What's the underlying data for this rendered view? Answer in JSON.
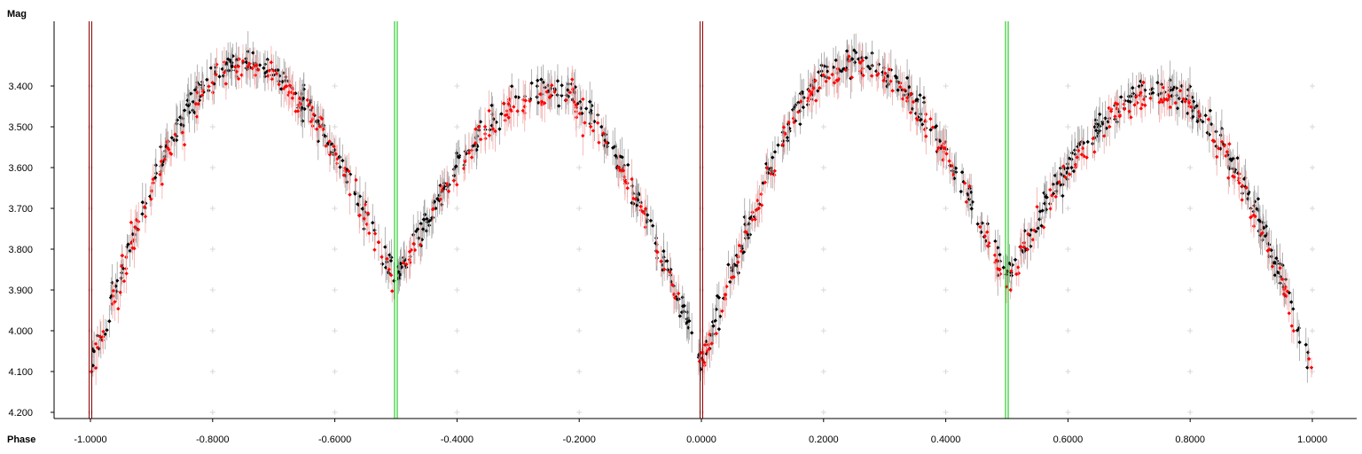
{
  "chart_data": {
    "type": "scatter",
    "title": "",
    "xlabel": "Phase",
    "ylabel": "Mag",
    "xlim": [
      -1.02,
      1.06
    ],
    "ylim": [
      4.22,
      3.25
    ],
    "y_inverted": true,
    "grid": "cross markers",
    "x_ticks": [
      -1.0,
      -0.8,
      -0.6,
      -0.4,
      -0.2,
      0.0,
      0.2,
      0.4,
      0.6,
      0.8,
      1.0
    ],
    "x_tick_labels": [
      "-1.0000",
      "-0.8000",
      "-0.6000",
      "-0.4000",
      "-0.2000",
      "0.0000",
      "0.2000",
      "0.4000",
      "0.6000",
      "0.8000",
      "1.0000"
    ],
    "y_ticks": [
      3.4,
      3.5,
      3.6,
      3.7,
      3.8,
      3.9,
      4.0,
      4.1,
      4.2
    ],
    "y_tick_labels": [
      "3.400",
      "3.500",
      "3.600",
      "3.700",
      "3.800",
      "3.900",
      "4.000",
      "4.100",
      "4.200"
    ],
    "light_curve_model": {
      "primary_minimum_mag": 4.05,
      "secondary_minimum_mag": 3.85,
      "max_mag_phase_0_25": 3.34,
      "max_mag_phase_0_75": 3.41
    },
    "series": [
      {
        "color": "#000000",
        "errorbar_color": "#a0a0a0",
        "marker": "diamond",
        "approx_points": 900
      },
      {
        "color": "#ff0000",
        "errorbar_color": "#f4aaaa",
        "marker": "diamond",
        "approx_points": 500
      }
    ],
    "vertical_lines": [
      {
        "phase": -1.0,
        "color": "#8b0000"
      },
      {
        "phase": -0.5,
        "color": "#00c000"
      },
      {
        "phase": 0.0,
        "color": "#8b0000"
      },
      {
        "phase": 0.5,
        "color": "#00c000"
      }
    ]
  },
  "colors": {
    "axis": "#000000",
    "grid_marker": "#d8d8d8"
  }
}
